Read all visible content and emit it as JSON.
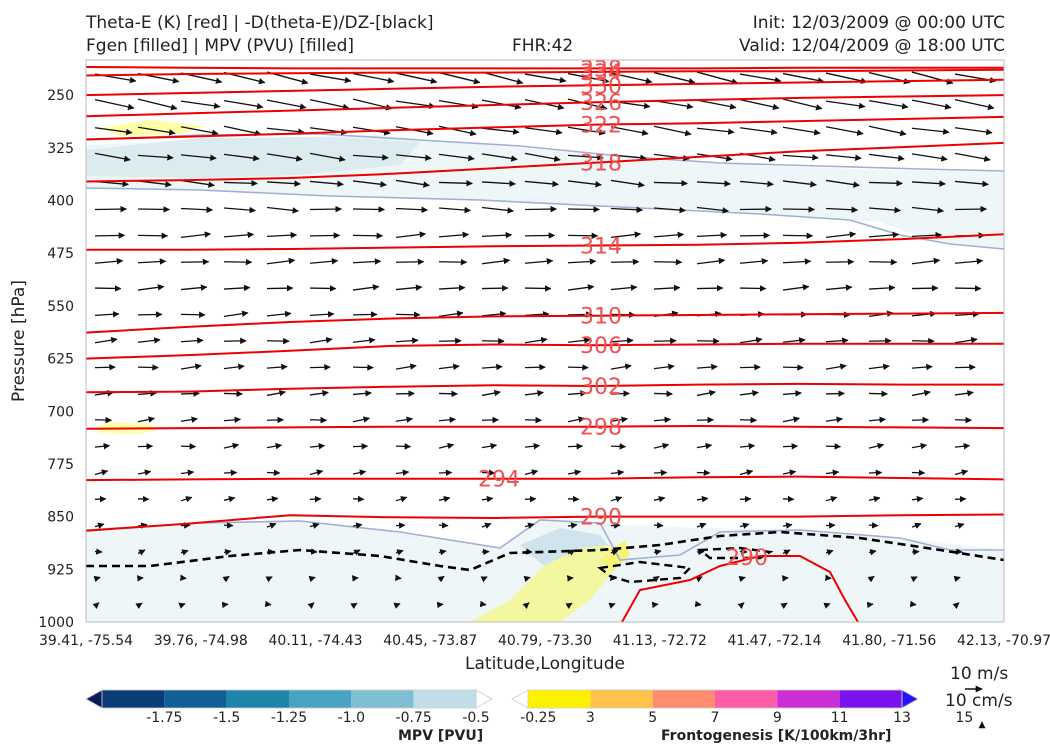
{
  "header": {
    "title_line1": "Theta-E (K) [red] | -D(theta-E)/DZ-[black]",
    "title_line2": "Fgen [filled] | MPV (PVU) [filled]",
    "fhr": "FHR:42",
    "init": "Init: 12/03/2009 @ 00:00 UTC",
    "valid": "Valid: 12/04/2009 @ 18:00 UTC"
  },
  "chart_data": {
    "type": "cross-section",
    "ylabel": "Pressure [hPa]",
    "xlabel": "Latitude,Longitude",
    "yticks": [
      250,
      325,
      400,
      475,
      550,
      625,
      700,
      775,
      850,
      925,
      1000
    ],
    "ylim": [
      1000,
      200
    ],
    "xticks": [
      "39.41, -75.54",
      "39.76, -74.98",
      "40.11, -74.43",
      "40.45, -73.87",
      "40.79, -73.30",
      "41.13, -72.72",
      "41.47, -72.14",
      "41.80, -71.56",
      "42.13, -70.97"
    ],
    "contours": [
      {
        "value": 338,
        "label": "338",
        "pressures": [
          210,
          211,
          212,
          212,
          212,
          212,
          212,
          211,
          211,
          211
        ]
      },
      {
        "value": 334,
        "label": "334",
        "pressures": [
          222,
          220,
          219,
          218,
          218,
          217,
          216,
          216,
          215,
          214
        ]
      },
      {
        "value": 330,
        "label": "330",
        "pressures": [
          250,
          247,
          244,
          241,
          238,
          236,
          234,
          232,
          230,
          228
        ]
      },
      {
        "value": 326,
        "label": "326",
        "pressures": [
          280,
          276,
          272,
          268,
          264,
          260,
          257,
          254,
          252,
          250
        ]
      },
      {
        "value": 322,
        "label": "322",
        "pressures": [
          313,
          309,
          305,
          300,
          296,
          292,
          290,
          287,
          284,
          281
        ]
      },
      {
        "value": 318,
        "label": "318",
        "pressures": [
          373,
          371,
          368,
          362,
          354,
          346,
          338,
          330,
          324,
          318
        ]
      },
      {
        "value": 314,
        "label": "314",
        "pressures": [
          470,
          470,
          469,
          467,
          465,
          464,
          463,
          460,
          455,
          448
        ]
      },
      {
        "value": 310,
        "label": "310",
        "pressures": [
          588,
          580,
          573,
          568,
          565,
          564,
          563,
          562,
          561,
          560
        ]
      },
      {
        "value": 306,
        "label": "306",
        "pressures": [
          625,
          620,
          614,
          607,
          605,
          606,
          605,
          604,
          604,
          604
        ]
      },
      {
        "value": 302,
        "label": "302",
        "pressures": [
          673,
          672,
          668,
          665,
          663,
          664,
          662,
          661,
          662,
          662
        ]
      },
      {
        "value": 298,
        "label": "298",
        "pressures": [
          725,
          724,
          723,
          722,
          722,
          722,
          721,
          722,
          723,
          724
        ]
      },
      {
        "value": 294,
        "label": "294",
        "pressures": [
          798,
          797,
          796,
          796,
          796,
          796,
          794,
          793,
          795,
          797
        ]
      },
      {
        "value": 290,
        "label": "290",
        "pressures": [
          870,
          860,
          848,
          851,
          852,
          850,
          850,
          850,
          848,
          847
        ]
      }
    ],
    "local_contour_label": "290",
    "colorbar_mpv": {
      "title": "MPV [PVU]",
      "ticks": [
        "-1.75",
        "-1.5",
        "-1.25",
        "-1.0",
        "-0.75",
        "-0.5",
        "-0.25"
      ],
      "colors": [
        "#081d58",
        "#0c3c78",
        "#125e96",
        "#1f84aa",
        "#46a4c2",
        "#7fbfd4",
        "#bfdee6",
        "#ffffff"
      ]
    },
    "colorbar_fgen": {
      "title": "Frontogenesis [K/100km/3hr]",
      "ticks": [
        "3",
        "5",
        "7",
        "9",
        "11",
        "13",
        "15"
      ],
      "colors": [
        "#ffffff",
        "#fff200",
        "#ffc34a",
        "#ff8c6e",
        "#ff5ca8",
        "#cc2ed6",
        "#7a12ee",
        "#2a12ff"
      ]
    },
    "vector_reference": {
      "horizontal": "10 m/s",
      "vertical": "10 cm/s"
    }
  }
}
